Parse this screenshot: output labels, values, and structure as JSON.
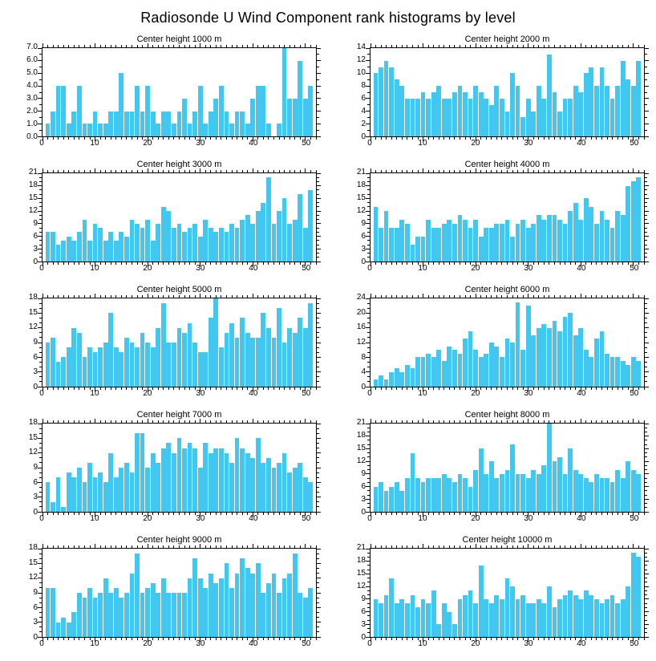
{
  "page_title": "Radiosonde U Wind Component rank histograms by level",
  "bar_color": "#41c7f0",
  "axis_color": "#000000",
  "chart_data": [
    {
      "type": "bar",
      "title": "Center height 1000 m",
      "xlabel": "",
      "ylabel": "",
      "xmax": 52,
      "xticks": [
        0,
        10,
        20,
        30,
        40,
        50
      ],
      "xtick_labels": [
        "0",
        "10",
        "20",
        "30",
        "40",
        "50"
      ],
      "ymax": 7,
      "ystep": 1,
      "ytick_vals": [
        0,
        1,
        2,
        3,
        4,
        5,
        6,
        7
      ],
      "ytick_labels": [
        "0.0",
        "1.0",
        "2.0",
        "3.0",
        "4.0",
        "5.0",
        "6.0",
        "7.0"
      ],
      "values": [
        1,
        2,
        4,
        4,
        1,
        2,
        4,
        1,
        1,
        2,
        1,
        1,
        2,
        2,
        5,
        2,
        2,
        4,
        2,
        4,
        2,
        1,
        2,
        2,
        1,
        2,
        3,
        1,
        2,
        4,
        1,
        2,
        3,
        4,
        2,
        1,
        2,
        2,
        1,
        3,
        4,
        4,
        1,
        0,
        1,
        7,
        3,
        3,
        6,
        3,
        4
      ]
    },
    {
      "type": "bar",
      "title": "Center height 2000 m",
      "xlabel": "",
      "ylabel": "",
      "xmax": 52,
      "xticks": [
        0,
        10,
        20,
        30,
        40,
        50
      ],
      "xtick_labels": [
        "0",
        "10",
        "20",
        "30",
        "40",
        "50"
      ],
      "ymax": 14,
      "ystep": 2,
      "ytick_vals": [
        0,
        2,
        4,
        6,
        8,
        10,
        12,
        14
      ],
      "ytick_labels": [
        "0",
        "2",
        "4",
        "6",
        "8",
        "10",
        "12",
        "14"
      ],
      "values": [
        10,
        11,
        12,
        11,
        9,
        8,
        6,
        6,
        6,
        7,
        6,
        7,
        8,
        6,
        6,
        7,
        8,
        7,
        6,
        8,
        7,
        6,
        5,
        8,
        6,
        4,
        10,
        8,
        3,
        6,
        4,
        8,
        6,
        13,
        7,
        4,
        6,
        6,
        8,
        7,
        10,
        11,
        8,
        11,
        8,
        6,
        8,
        12,
        9,
        8,
        12
      ]
    },
    {
      "type": "bar",
      "title": "Center height 3000 m",
      "xlabel": "",
      "ylabel": "",
      "xmax": 52,
      "xticks": [
        0,
        10,
        20,
        30,
        40,
        50
      ],
      "xtick_labels": [
        "0",
        "10",
        "20",
        "30",
        "40",
        "50"
      ],
      "ymax": 21,
      "ystep": 3,
      "ytick_vals": [
        0,
        3,
        6,
        9,
        12,
        15,
        18,
        21
      ],
      "ytick_labels": [
        "0",
        "3",
        "6",
        "9",
        "12",
        "15",
        "18",
        "21"
      ],
      "values": [
        7,
        7,
        4,
        5,
        6,
        5,
        7,
        10,
        5,
        9,
        8,
        5,
        7,
        5,
        7,
        6,
        10,
        9,
        8,
        10,
        5,
        9,
        13,
        12,
        8,
        9,
        7,
        8,
        9,
        6,
        10,
        8,
        7,
        8,
        7,
        9,
        8,
        10,
        11,
        9,
        12,
        14,
        20,
        9,
        12,
        15,
        9,
        10,
        16,
        8,
        17
      ]
    },
    {
      "type": "bar",
      "title": "Center height 4000 m",
      "xlabel": "",
      "ylabel": "",
      "xmax": 52,
      "xticks": [
        0,
        10,
        20,
        30,
        40,
        50
      ],
      "xtick_labels": [
        "0",
        "10",
        "20",
        "30",
        "40",
        "50"
      ],
      "ymax": 21,
      "ystep": 3,
      "ytick_vals": [
        0,
        3,
        6,
        9,
        12,
        15,
        18,
        21
      ],
      "ytick_labels": [
        "0",
        "3",
        "6",
        "9",
        "12",
        "15",
        "18",
        "21"
      ],
      "values": [
        13,
        8,
        12,
        8,
        8,
        10,
        9,
        4,
        6,
        6,
        10,
        8,
        8,
        9,
        10,
        9,
        11,
        10,
        8,
        10,
        6,
        8,
        8,
        9,
        9,
        10,
        6,
        9,
        10,
        8,
        9,
        11,
        10,
        11,
        11,
        10,
        9,
        12,
        14,
        10,
        15,
        13,
        9,
        12,
        10,
        8,
        12,
        11,
        18,
        19,
        20
      ]
    },
    {
      "type": "bar",
      "title": "Center height 5000 m",
      "xlabel": "",
      "ylabel": "",
      "xmax": 52,
      "xticks": [
        0,
        10,
        20,
        30,
        40,
        50
      ],
      "xtick_labels": [
        "0",
        "10",
        "20",
        "30",
        "40",
        "50"
      ],
      "ymax": 18,
      "ystep": 3,
      "ytick_vals": [
        0,
        3,
        6,
        9,
        12,
        15,
        18
      ],
      "ytick_labels": [
        "0",
        "3",
        "6",
        "9",
        "12",
        "15",
        "18"
      ],
      "values": [
        9,
        10,
        5,
        6,
        8,
        12,
        11,
        6,
        8,
        7,
        8,
        9,
        15,
        8,
        7,
        10,
        9,
        8,
        11,
        9,
        8,
        12,
        17,
        9,
        9,
        12,
        11,
        13,
        9,
        7,
        7,
        14,
        18,
        8,
        11,
        13,
        10,
        14,
        11,
        10,
        10,
        15,
        12,
        10,
        16,
        9,
        12,
        11,
        14,
        12,
        17
      ]
    },
    {
      "type": "bar",
      "title": "Center height 6000 m",
      "xlabel": "",
      "ylabel": "",
      "xmax": 52,
      "xticks": [
        0,
        10,
        20,
        30,
        40,
        50
      ],
      "xtick_labels": [
        "0",
        "10",
        "20",
        "30",
        "40",
        "50"
      ],
      "ymax": 24,
      "ystep": 4,
      "ytick_vals": [
        0,
        4,
        8,
        12,
        16,
        20,
        24
      ],
      "ytick_labels": [
        "0",
        "4",
        "8",
        "12",
        "16",
        "20",
        "24"
      ],
      "values": [
        2,
        3,
        2,
        4,
        5,
        4,
        6,
        5,
        8,
        8,
        9,
        8,
        10,
        7,
        11,
        10,
        9,
        13,
        15,
        10,
        8,
        9,
        12,
        11,
        8,
        13,
        12,
        23,
        10,
        22,
        14,
        16,
        17,
        16,
        18,
        15,
        19,
        20,
        14,
        16,
        10,
        8,
        13,
        15,
        9,
        8,
        8,
        7,
        6,
        8,
        7
      ]
    },
    {
      "type": "bar",
      "title": "Center height 7000 m",
      "xlabel": "",
      "ylabel": "",
      "xmax": 52,
      "xticks": [
        0,
        10,
        20,
        30,
        40,
        50
      ],
      "xtick_labels": [
        "0",
        "10",
        "20",
        "30",
        "40",
        "50"
      ],
      "ymax": 18,
      "ystep": 3,
      "ytick_vals": [
        0,
        3,
        6,
        9,
        12,
        15,
        18
      ],
      "ytick_labels": [
        "0",
        "3",
        "6",
        "9",
        "12",
        "15",
        "18"
      ],
      "values": [
        6,
        2,
        7,
        1,
        8,
        7,
        9,
        6,
        10,
        7,
        8,
        6,
        12,
        7,
        9,
        10,
        8,
        16,
        16,
        9,
        12,
        10,
        13,
        14,
        12,
        15,
        13,
        14,
        13,
        9,
        14,
        12,
        13,
        13,
        12,
        10,
        15,
        13,
        12,
        11,
        15,
        10,
        11,
        9,
        10,
        12,
        8,
        9,
        10,
        7,
        6
      ]
    },
    {
      "type": "bar",
      "title": "Center height 8000 m",
      "xlabel": "",
      "ylabel": "",
      "xmax": 52,
      "xticks": [
        0,
        10,
        20,
        30,
        40,
        50
      ],
      "xtick_labels": [
        "0",
        "10",
        "20",
        "30",
        "40",
        "50"
      ],
      "ymax": 21,
      "ystep": 3,
      "ytick_vals": [
        0,
        3,
        6,
        9,
        12,
        15,
        18,
        21
      ],
      "ytick_labels": [
        "0",
        "3",
        "6",
        "9",
        "12",
        "15",
        "18",
        "21"
      ],
      "values": [
        6,
        7,
        5,
        6,
        7,
        5,
        8,
        14,
        8,
        7,
        8,
        8,
        8,
        9,
        8,
        7,
        9,
        8,
        6,
        10,
        15,
        9,
        12,
        8,
        9,
        10,
        16,
        9,
        9,
        8,
        10,
        9,
        11,
        21,
        12,
        13,
        9,
        15,
        10,
        9,
        8,
        7,
        9,
        8,
        8,
        7,
        10,
        8,
        12,
        10,
        9
      ]
    },
    {
      "type": "bar",
      "title": "Center height 9000 m",
      "xlabel": "",
      "ylabel": "",
      "xmax": 52,
      "xticks": [
        0,
        10,
        20,
        30,
        40,
        50
      ],
      "xtick_labels": [
        "0",
        "10",
        "20",
        "30",
        "40",
        "50"
      ],
      "ymax": 18,
      "ystep": 3,
      "ytick_vals": [
        0,
        3,
        6,
        9,
        12,
        15,
        18
      ],
      "ytick_labels": [
        "0",
        "3",
        "6",
        "9",
        "12",
        "15",
        "18"
      ],
      "values": [
        10,
        10,
        3,
        4,
        3,
        5,
        9,
        8,
        10,
        8,
        9,
        12,
        9,
        10,
        8,
        9,
        13,
        17,
        9,
        10,
        11,
        9,
        12,
        9,
        9,
        9,
        9,
        12,
        16,
        12,
        10,
        13,
        11,
        12,
        15,
        10,
        13,
        16,
        14,
        13,
        15,
        9,
        11,
        13,
        9,
        12,
        13,
        17,
        9,
        8,
        10
      ]
    },
    {
      "type": "bar",
      "title": "Center height 10000 m",
      "xlabel": "",
      "ylabel": "",
      "xmax": 52,
      "xticks": [
        0,
        10,
        20,
        30,
        40,
        50
      ],
      "xtick_labels": [
        "0",
        "10",
        "20",
        "30",
        "40",
        "50"
      ],
      "ymax": 21,
      "ystep": 3,
      "ytick_vals": [
        0,
        3,
        6,
        9,
        12,
        15,
        18,
        21
      ],
      "ytick_labels": [
        "0",
        "3",
        "6",
        "9",
        "12",
        "15",
        "18",
        "21"
      ],
      "values": [
        9,
        8,
        10,
        14,
        8,
        9,
        8,
        10,
        7,
        9,
        8,
        11,
        3,
        8,
        6,
        3,
        9,
        10,
        11,
        8,
        17,
        9,
        8,
        10,
        9,
        14,
        12,
        9,
        10,
        8,
        8,
        9,
        8,
        12,
        7,
        9,
        10,
        11,
        10,
        9,
        11,
        10,
        9,
        8,
        9,
        10,
        8,
        9,
        12,
        20,
        19
      ]
    }
  ]
}
